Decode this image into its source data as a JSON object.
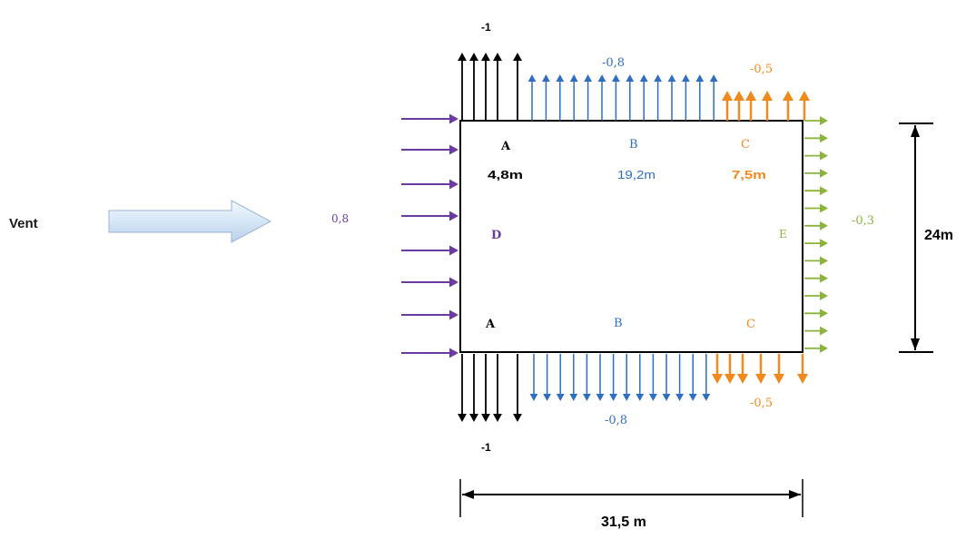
{
  "wind_label": "Vent",
  "wind_value": "0,8",
  "zones": {
    "top": {
      "A": {
        "letter": "A",
        "width": "4,8m",
        "coef": "-1"
      },
      "B": {
        "letter": "B",
        "width": "19,2m",
        "coef": "-0,8"
      },
      "C": {
        "letter": "C",
        "width": "7,5m",
        "coef": "-0,5"
      }
    },
    "bottom": {
      "A": {
        "letter": "A",
        "coef": "-1"
      },
      "B": {
        "letter": "B",
        "coef": "-0,8"
      },
      "C": {
        "letter": "C",
        "coef": "-0,5"
      }
    },
    "D": {
      "letter": "D"
    },
    "E": {
      "letter": "E",
      "coef": "-0,3"
    }
  },
  "dimensions": {
    "length": "31,5 m",
    "depth": "24m"
  },
  "colors": {
    "zone_A": "#000000",
    "zone_B": "#2e6fbf",
    "zone_C": "#f08a1c",
    "zone_D": "#6a3aa0",
    "zone_E": "#8ab43c",
    "building": "#000000",
    "wind_arrow": "#c9dcf1"
  }
}
